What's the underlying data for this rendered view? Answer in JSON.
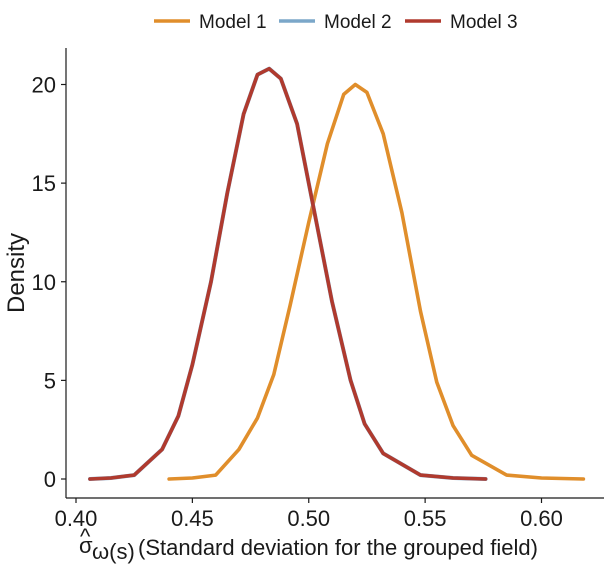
{
  "chart_data": {
    "type": "line",
    "title": "",
    "xlabel": {
      "symbol": "σ",
      "hat": "^",
      "subscript": "ω(s)",
      "description": "(Standard deviation for the grouped field)"
    },
    "ylabel": "Density",
    "xlim": [
      0.4,
      0.62
    ],
    "ylim": [
      0,
      21
    ],
    "x_ticks": [
      0.4,
      0.45,
      0.5,
      0.55,
      0.6
    ],
    "x_tick_labels": [
      "0.40",
      "0.45",
      "0.50",
      "0.55",
      "0.60"
    ],
    "y_ticks": [
      0,
      5,
      10,
      15,
      20
    ],
    "y_tick_labels": [
      "0",
      "5",
      "10",
      "15",
      "20"
    ],
    "legend_position": "top",
    "grid": false,
    "series": [
      {
        "name": "Model 1",
        "color": "#E08E2B",
        "points": [
          [
            0.44,
            0.0
          ],
          [
            0.45,
            0.05
          ],
          [
            0.46,
            0.2
          ],
          [
            0.47,
            1.5
          ],
          [
            0.478,
            3.1
          ],
          [
            0.485,
            5.3
          ],
          [
            0.492,
            8.8
          ],
          [
            0.5,
            13.0
          ],
          [
            0.508,
            17.0
          ],
          [
            0.515,
            19.5
          ],
          [
            0.52,
            20.0
          ],
          [
            0.525,
            19.6
          ],
          [
            0.532,
            17.5
          ],
          [
            0.54,
            13.5
          ],
          [
            0.548,
            8.5
          ],
          [
            0.555,
            4.9
          ],
          [
            0.562,
            2.7
          ],
          [
            0.57,
            1.2
          ],
          [
            0.585,
            0.2
          ],
          [
            0.6,
            0.05
          ],
          [
            0.618,
            0.0
          ]
        ]
      },
      {
        "name": "Model 2",
        "color": "#7BA7C9",
        "points": [
          [
            0.406,
            0.0
          ],
          [
            0.415,
            0.05
          ],
          [
            0.425,
            0.2
          ],
          [
            0.437,
            1.5
          ],
          [
            0.444,
            3.2
          ],
          [
            0.45,
            5.8
          ],
          [
            0.458,
            10.0
          ],
          [
            0.465,
            14.5
          ],
          [
            0.472,
            18.5
          ],
          [
            0.478,
            20.5
          ],
          [
            0.483,
            20.8
          ],
          [
            0.488,
            20.3
          ],
          [
            0.495,
            18.0
          ],
          [
            0.503,
            13.2
          ],
          [
            0.51,
            9.0
          ],
          [
            0.518,
            5.0
          ],
          [
            0.524,
            2.8
          ],
          [
            0.532,
            1.3
          ],
          [
            0.548,
            0.2
          ],
          [
            0.562,
            0.05
          ],
          [
            0.576,
            0.0
          ]
        ]
      },
      {
        "name": "Model 3",
        "color": "#B03A2E",
        "points": [
          [
            0.406,
            0.0
          ],
          [
            0.415,
            0.05
          ],
          [
            0.425,
            0.2
          ],
          [
            0.437,
            1.5
          ],
          [
            0.444,
            3.2
          ],
          [
            0.45,
            5.8
          ],
          [
            0.458,
            10.0
          ],
          [
            0.465,
            14.5
          ],
          [
            0.472,
            18.5
          ],
          [
            0.478,
            20.5
          ],
          [
            0.483,
            20.8
          ],
          [
            0.488,
            20.3
          ],
          [
            0.495,
            18.0
          ],
          [
            0.503,
            13.2
          ],
          [
            0.51,
            9.0
          ],
          [
            0.518,
            5.0
          ],
          [
            0.524,
            2.8
          ],
          [
            0.532,
            1.3
          ],
          [
            0.548,
            0.2
          ],
          [
            0.562,
            0.05
          ],
          [
            0.576,
            0.0
          ]
        ]
      }
    ]
  }
}
